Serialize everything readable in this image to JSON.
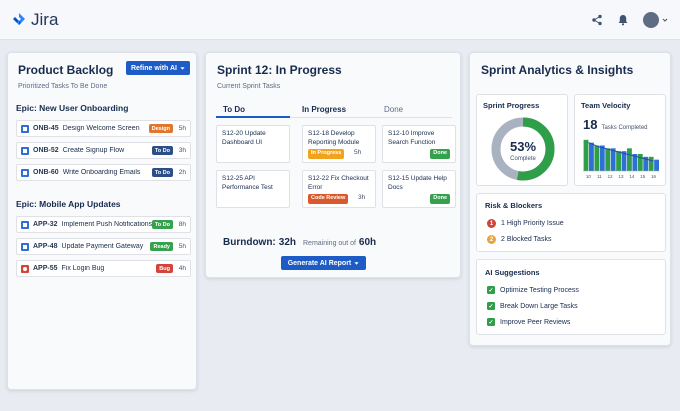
{
  "app": {
    "name": "Jira"
  },
  "backlog": {
    "title": "Product Backlog",
    "refine_label": "Refine with AI",
    "subtitle": "Prioritized Tasks To Be Done",
    "epics": [
      {
        "name": "Epic: New User Onboarding",
        "items": [
          {
            "key": "ONB-45",
            "title": "Design Welcome Screen",
            "status": "Design",
            "estimate": "5h",
            "icon": "story-icon"
          },
          {
            "key": "ONB-52",
            "title": "Create Signup Flow",
            "status": "To Do",
            "estimate": "3h",
            "icon": "task-icon"
          },
          {
            "key": "ONB-60",
            "title": "Write Onboarding Emails",
            "status": "To Do",
            "estimate": "2h",
            "icon": "task-icon"
          }
        ]
      },
      {
        "name": "Epic: Mobile App Updates",
        "items": [
          {
            "key": "APP-32",
            "title": "Implement Push Notifications",
            "status": "To Do",
            "estimate": "8h",
            "icon": "task-icon"
          },
          {
            "key": "APP-48",
            "title": "Update Payment Gateway",
            "status": "Ready",
            "estimate": "5h",
            "icon": "task-icon"
          },
          {
            "key": "APP-55",
            "title": "Fix Login Bug",
            "status": "Bug",
            "estimate": "4h",
            "icon": "bug-icon"
          }
        ]
      }
    ]
  },
  "sprint": {
    "title": "Sprint 12: In Progress",
    "subtitle": "Current Sprint Tasks",
    "columns": [
      "To Do",
      "In Progress",
      "Done"
    ],
    "cards": {
      "todo": [
        {
          "text": "S12-20 Update Dashboard UI"
        },
        {
          "text": "S12-25 API Performance Test"
        }
      ],
      "inprogress": [
        {
          "text": "S12-18 Develop Reporting Module",
          "badge": "In Progress",
          "estimate": "5h"
        },
        {
          "text": "S12-22 Fix Checkout Error",
          "badge": "Code Review",
          "estimate": "3h"
        }
      ],
      "done": [
        {
          "text": "S12-10 Improve Search Function",
          "badge": "Done"
        },
        {
          "text": "S12-15 Update Help Docs",
          "badge": "Done"
        }
      ]
    },
    "burndown_label": "Burndown:",
    "burndown_value": "32h",
    "remaining_text": "Remaining out of",
    "remaining_total": "60h",
    "report_label": "Generate AI Report"
  },
  "analytics": {
    "title": "Sprint Analytics & Insights",
    "progress": {
      "title": "Sprint Progress",
      "percent_text": "53%",
      "label": "Complete",
      "fraction": 0.53
    },
    "velocity": {
      "title": "Team Velocity",
      "value": "18",
      "label": "Tasks Completed"
    },
    "risks": {
      "title": "Risk & Blockers",
      "items": [
        {
          "num": "1",
          "text": "1 High Priority Issue",
          "color": "#d04437"
        },
        {
          "num": "2",
          "text": "2 Blocked Tasks",
          "color": "#e8a33c"
        }
      ]
    },
    "suggestions": {
      "title": "AI Suggestions",
      "items": [
        "Optimize Testing Process",
        "Break Down Large Tasks",
        "Improve Peer Reviews"
      ]
    }
  },
  "chart_data": {
    "type": "bar",
    "title": "Team Velocity",
    "categories": [
      "10",
      "11",
      "12",
      "13",
      "14",
      "15",
      "16"
    ],
    "values": [
      11,
      9,
      8,
      7,
      8,
      6,
      5
    ],
    "series": [
      {
        "values": [
          11,
          9,
          8,
          7,
          8,
          6,
          5
        ],
        "color": "#2e9e48"
      },
      {
        "values": [
          10,
          9,
          8,
          7,
          6,
          5,
          4
        ],
        "color": "#2f6fd6"
      }
    ],
    "trend": [
      10,
      8.5,
      7.5,
      6.5,
      5.5,
      4.5,
      3.5
    ],
    "ylim": [
      0,
      12
    ],
    "xlabel": "",
    "ylabel": ""
  },
  "colors": {
    "accent": "#1d5cc6",
    "design": "#e2762b",
    "todo": "#2b4f86",
    "ready": "#35a14c",
    "bug": "#d3443a",
    "in_progress": "#f2a21b",
    "code_review": "#d9582c",
    "done": "#35a14c"
  }
}
